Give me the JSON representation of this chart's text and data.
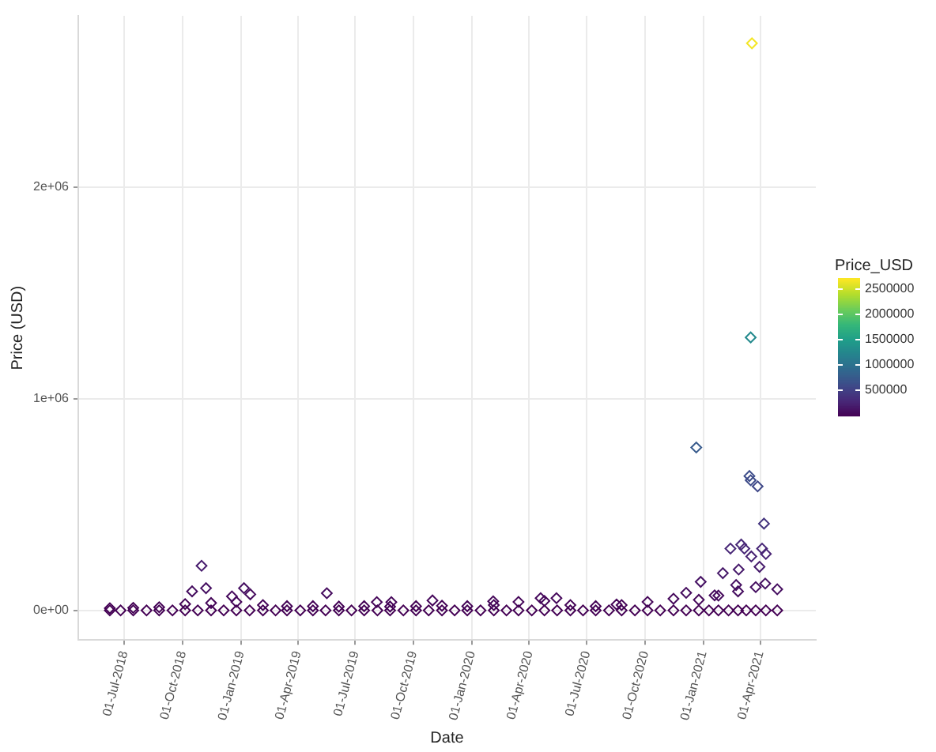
{
  "chart_data": {
    "type": "scatter",
    "xlabel": "Date",
    "ylabel": "Price (USD)",
    "clabel": "Price_USD",
    "marker": "diamond",
    "grid": true,
    "legend": false,
    "xlim": [
      "2018-04-19",
      "2021-06-28"
    ],
    "xticks": [
      {
        "value": "2018-07-01",
        "label": "01-Jul-2018"
      },
      {
        "value": "2018-10-01",
        "label": "01-Oct-2018"
      },
      {
        "value": "2019-01-01",
        "label": "01-Jan-2019"
      },
      {
        "value": "2019-04-01",
        "label": "01-Apr-2019"
      },
      {
        "value": "2019-07-01",
        "label": "01-Jul-2019"
      },
      {
        "value": "2019-10-01",
        "label": "01-Oct-2019"
      },
      {
        "value": "2020-01-01",
        "label": "01-Jan-2020"
      },
      {
        "value": "2020-04-01",
        "label": "01-Apr-2020"
      },
      {
        "value": "2020-07-01",
        "label": "01-Jul-2020"
      },
      {
        "value": "2020-10-01",
        "label": "01-Oct-2020"
      },
      {
        "value": "2021-01-01",
        "label": "01-Jan-2021"
      },
      {
        "value": "2021-04-01",
        "label": "01-Apr-2021"
      }
    ],
    "ylim": [
      -140000,
      2810000
    ],
    "yticks": [
      {
        "value": 0,
        "label": "0e+00"
      },
      {
        "value": 1000000,
        "label": "1e+06"
      },
      {
        "value": 2000000,
        "label": "2e+06"
      }
    ],
    "clim": [
      0,
      2720000
    ],
    "cticks": [
      500000,
      1000000,
      1500000,
      2000000,
      2500000
    ],
    "x": [
      "2018-06-08",
      "2018-06-25",
      "2018-07-15",
      "2018-08-05",
      "2018-08-25",
      "2018-09-15",
      "2018-10-05",
      "2018-10-25",
      "2018-11-15",
      "2018-12-05",
      "2018-12-25",
      "2019-01-15",
      "2019-02-05",
      "2019-02-25",
      "2019-03-15",
      "2019-04-05",
      "2019-04-25",
      "2019-05-15",
      "2019-06-05",
      "2019-06-25",
      "2019-07-15",
      "2019-08-05",
      "2019-08-25",
      "2019-09-15",
      "2019-10-05",
      "2019-10-25",
      "2019-11-15",
      "2019-12-05",
      "2019-12-25",
      "2020-01-15",
      "2020-02-05",
      "2020-02-25",
      "2020-03-15",
      "2020-04-05",
      "2020-04-25",
      "2020-05-15",
      "2020-06-05",
      "2020-06-25",
      "2020-07-15",
      "2020-08-05",
      "2020-08-25",
      "2020-09-15",
      "2020-10-05",
      "2020-10-25",
      "2020-11-15",
      "2020-12-05",
      "2020-12-25",
      "2021-01-10",
      "2021-01-25",
      "2021-02-10",
      "2021-02-25",
      "2021-03-10",
      "2021-03-25",
      "2021-04-10",
      "2021-04-28",
      "2018-06-08",
      "2018-07-15",
      "2018-08-25",
      "2018-10-05",
      "2018-11-15",
      "2018-12-25",
      "2019-02-05",
      "2019-03-15",
      "2019-04-25",
      "2019-06-05",
      "2019-07-15",
      "2019-08-25",
      "2019-10-05",
      "2019-11-15",
      "2019-12-25",
      "2020-02-05",
      "2020-03-15",
      "2020-04-25",
      "2020-06-05",
      "2020-07-15",
      "2020-08-25",
      "2020-10-05",
      "2020-11-15",
      "2020-12-25",
      "2021-01-25",
      "2021-02-25",
      "2021-03-25",
      "2021-04-28",
      "2018-10-31",
      "2018-10-16",
      "2018-11-07",
      "2019-01-06",
      "2019-01-16",
      "2018-12-18",
      "2019-05-17",
      "2019-08-04",
      "2019-08-27",
      "2019-10-31",
      "2020-02-04",
      "2020-04-19",
      "2020-05-14",
      "2020-08-17",
      "2020-12-05",
      "2020-12-21",
      "2020-12-28",
      "2021-03-15",
      "2021-03-17",
      "2021-03-28",
      "2021-04-07",
      "2021-02-13",
      "2021-03-02",
      "2021-03-07",
      "2021-04-04",
      "2021-04-10",
      "2021-02-26",
      "2021-02-01",
      "2021-03-18",
      "2021-03-31",
      "2021-04-09",
      "2021-02-22",
      "2021-01-19",
      "2021-03-17",
      "2021-03-19"
    ],
    "values": [
      0,
      0,
      0,
      0,
      0,
      0,
      0,
      0,
      0,
      0,
      0,
      0,
      0,
      0,
      0,
      0,
      0,
      0,
      0,
      0,
      0,
      0,
      0,
      0,
      0,
      0,
      0,
      0,
      0,
      0,
      0,
      0,
      0,
      0,
      0,
      0,
      0,
      0,
      0,
      0,
      0,
      0,
      0,
      0,
      0,
      0,
      0,
      0,
      0,
      0,
      0,
      0,
      0,
      0,
      0,
      10000,
      12000,
      15000,
      30000,
      35000,
      40000,
      25000,
      20000,
      20000,
      18000,
      20000,
      18000,
      20000,
      22000,
      20000,
      25000,
      40000,
      45000,
      25000,
      20000,
      25000,
      40000,
      55000,
      50000,
      70000,
      90000,
      110000,
      100000,
      211000,
      90000,
      105000,
      105000,
      76000,
      66000,
      81000,
      39000,
      39000,
      47000,
      43000,
      58000,
      58000,
      28000,
      83000,
      770000,
      135000,
      635000,
      615000,
      586000,
      410000,
      292000,
      311000,
      292000,
      292000,
      267000,
      193000,
      176000,
      255000,
      206000,
      127000,
      120000,
      71000,
      1290000,
      2680000
    ],
    "cvalues": [
      0,
      0,
      0,
      0,
      0,
      0,
      0,
      0,
      0,
      0,
      0,
      0,
      0,
      0,
      0,
      0,
      0,
      0,
      0,
      0,
      0,
      0,
      0,
      0,
      0,
      0,
      0,
      0,
      0,
      0,
      0,
      0,
      0,
      0,
      0,
      0,
      0,
      0,
      0,
      0,
      0,
      0,
      0,
      0,
      0,
      0,
      0,
      0,
      0,
      0,
      0,
      0,
      0,
      0,
      0,
      10000,
      12000,
      15000,
      30000,
      35000,
      40000,
      25000,
      20000,
      20000,
      18000,
      20000,
      18000,
      20000,
      22000,
      20000,
      25000,
      40000,
      45000,
      25000,
      20000,
      25000,
      40000,
      55000,
      50000,
      70000,
      90000,
      110000,
      100000,
      211000,
      90000,
      105000,
      105000,
      76000,
      66000,
      81000,
      39000,
      39000,
      47000,
      43000,
      58000,
      58000,
      28000,
      83000,
      770000,
      135000,
      635000,
      615000,
      586000,
      410000,
      292000,
      311000,
      292000,
      292000,
      267000,
      193000,
      176000,
      255000,
      206000,
      127000,
      120000,
      71000,
      1290000,
      2680000
    ]
  }
}
